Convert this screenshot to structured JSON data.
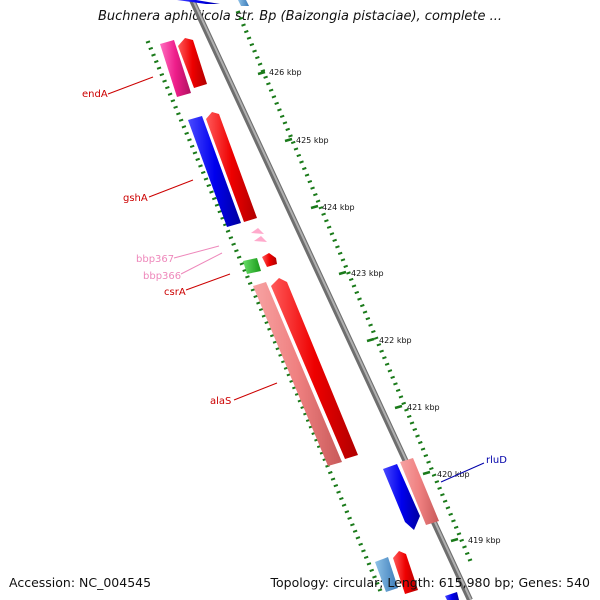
{
  "header": {
    "title": "Buchnera aphidicola str. Bp (Baizongia pistaciae), complete ..."
  },
  "footer": {
    "accession": "Accession: NC_004545",
    "topology": "Topology: circular; Length: 615,980 bp; Genes: 540"
  },
  "scale": {
    "ticks": [
      "426 kbp",
      "425 kbp",
      "424 kbp",
      "423 kbp",
      "422 kbp",
      "421 kbp",
      "420 kbp",
      "419 kbp"
    ]
  },
  "genes": {
    "endA": "endA",
    "gshA": "gshA",
    "bbp367": "bbp367",
    "bbp366": "bbp366",
    "csrA": "csrA",
    "alaS": "alaS",
    "rluD": "rluD"
  },
  "colors": {
    "backbone": "#8a8a8a",
    "tick": "#1a7a1a",
    "cds_forward": "#ff0000",
    "cds_reverse": "#0000ff",
    "rrna": "#f08080",
    "trna": "#ee1d8a",
    "misc": "#ffaacc",
    "regulatory": "#22bb22",
    "gene_label": "#cc0000",
    "rluD_label": "#0000aa",
    "small_label": "#ee88bb"
  }
}
